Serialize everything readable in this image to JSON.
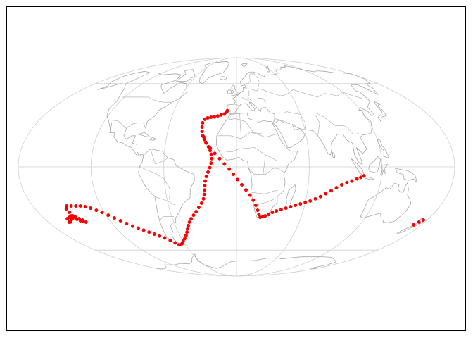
{
  "map": {
    "projection": "mollweide",
    "frame": true,
    "graticule": {
      "meridians_deg": [
        -180,
        -120,
        -60,
        0,
        60,
        120,
        180
      ],
      "parallels_deg": [
        -60,
        -30,
        0,
        30,
        60
      ]
    },
    "colors": {
      "frame": "#000000",
      "graticule": "#cfcfcf",
      "coastline": "#a8a8a8",
      "track": "#ff0000",
      "track_edge": "#cc0000"
    }
  },
  "chart_data": {
    "type": "scatter",
    "title": "",
    "xlabel": "",
    "ylabel": "",
    "series": [
      {
        "points_lonlat": [
          [
            -8.8,
            38.7
          ],
          [
            -9.5,
            37.6
          ],
          [
            -11.5,
            36.3
          ],
          [
            -14.5,
            35.6
          ],
          [
            -17.5,
            34.8
          ],
          [
            -20.5,
            34.2
          ],
          [
            -23.5,
            34.0
          ],
          [
            -26.5,
            33.5
          ],
          [
            -29.0,
            32.5
          ],
          [
            -30.5,
            30.0
          ],
          [
            -30.5,
            27.0
          ],
          [
            -30.0,
            24.0
          ],
          [
            -29.0,
            21.0
          ],
          [
            -27.5,
            18.5
          ],
          [
            -25.5,
            16.0
          ],
          [
            -23.5,
            13.5
          ],
          [
            -22.0,
            11.0
          ],
          [
            -21.0,
            8.5
          ],
          [
            -20.5,
            5.5
          ],
          [
            -21.0,
            2.5
          ],
          [
            -22.0,
            -0.5
          ],
          [
            -23.5,
            -3.5
          ],
          [
            -25.0,
            -6.5
          ],
          [
            -26.0,
            -9.5
          ],
          [
            -26.5,
            -12.5
          ],
          [
            -27.0,
            -15.5
          ],
          [
            -27.5,
            -18.5
          ],
          [
            -28.5,
            -21.5
          ],
          [
            -30.5,
            -24.5
          ],
          [
            -33.5,
            -27.5
          ],
          [
            -36.5,
            -30.5
          ],
          [
            -39.5,
            -33.0
          ],
          [
            -42.5,
            -35.5
          ],
          [
            -45.0,
            -38.0
          ],
          [
            -47.0,
            -40.5
          ],
          [
            -49.0,
            -43.0
          ],
          [
            -51.0,
            -45.5
          ],
          [
            -53.5,
            -48.0
          ],
          [
            -56.5,
            -50.5
          ],
          [
            -60.0,
            -52.5
          ],
          [
            -63.0,
            -54.5
          ],
          [
            -65.5,
            -55.5
          ],
          [
            -67.5,
            -55.5
          ],
          [
            -70.5,
            -54.0
          ],
          [
            -74.0,
            -52.0
          ],
          [
            -78.0,
            -50.0
          ],
          [
            -82.0,
            -48.5
          ],
          [
            -86.0,
            -47.0
          ],
          [
            -90.0,
            -45.5
          ],
          [
            -94.0,
            -44.0
          ],
          [
            -98.0,
            -42.5
          ],
          [
            -102.0,
            -41.0
          ],
          [
            -106.0,
            -39.0
          ],
          [
            -110.0,
            -37.0
          ],
          [
            -114.0,
            -35.0
          ],
          [
            -118.0,
            -33.0
          ],
          [
            -122.0,
            -31.0
          ],
          [
            -126.0,
            -29.5
          ],
          [
            -130.0,
            -28.0
          ],
          [
            -134.0,
            -27.0
          ],
          [
            -138.0,
            -26.5
          ],
          [
            -142.0,
            -26.5
          ],
          [
            -146.0,
            -26.5
          ],
          [
            -150.0,
            -26.5
          ],
          [
            -152.0,
            -28.5
          ],
          [
            -151.5,
            -31.0
          ],
          [
            -152.5,
            -33.5
          ],
          [
            -155.0,
            -36.0
          ],
          [
            -158.0,
            -37.5
          ],
          [
            -158.5,
            -35.5
          ],
          [
            -155.5,
            -34.5
          ],
          [
            -152.5,
            -35.0
          ],
          [
            -150.0,
            -36.0
          ],
          [
            -148.0,
            -37.0
          ],
          [
            -146.0,
            -37.5
          ],
          [
            -144.0,
            -38.0
          ],
          [
            -145.5,
            -36.5
          ],
          [
            -147.5,
            -35.5
          ],
          [
            -149.5,
            -34.5
          ],
          [
            -151.0,
            -33.5
          ],
          [
            -159.0,
            -38.0
          ],
          [
            -160.0,
            -38.0
          ],
          [
            -157.5,
            -37.0
          ],
          [
            -28.0,
            20.0
          ],
          [
            -26.0,
            16.5
          ],
          [
            -22.0,
            12.5
          ],
          [
            -18.0,
            9.0
          ],
          [
            -14.0,
            5.5
          ],
          [
            -10.0,
            2.0
          ],
          [
            -6.0,
            -1.5
          ],
          [
            -2.5,
            -5.0
          ],
          [
            1.0,
            -8.5
          ],
          [
            4.5,
            -12.0
          ],
          [
            8.0,
            -15.5
          ],
          [
            11.5,
            -19.0
          ],
          [
            14.5,
            -22.5
          ],
          [
            17.0,
            -26.0
          ],
          [
            19.0,
            -29.5
          ],
          [
            20.5,
            -32.5
          ],
          [
            22.0,
            -34.5
          ],
          [
            24.5,
            -34.0
          ],
          [
            26.5,
            -33.5
          ],
          [
            29.5,
            -32.5
          ],
          [
            32.5,
            -31.0
          ],
          [
            36.0,
            -30.0
          ],
          [
            40.0,
            -29.0
          ],
          [
            44.0,
            -28.0
          ],
          [
            48.0,
            -27.0
          ],
          [
            52.0,
            -26.0
          ],
          [
            56.0,
            -25.0
          ],
          [
            60.0,
            -24.0
          ],
          [
            64.0,
            -23.0
          ],
          [
            68.0,
            -21.5
          ],
          [
            72.0,
            -20.0
          ],
          [
            76.0,
            -18.0
          ],
          [
            80.0,
            -16.0
          ],
          [
            84.0,
            -14.0
          ],
          [
            88.0,
            -12.0
          ],
          [
            92.0,
            -10.5
          ],
          [
            96.0,
            -9.5
          ],
          [
            100.0,
            -8.0
          ],
          [
            103.0,
            -7.0
          ],
          [
            105.5,
            -6.0
          ],
          [
            172.5,
            -40.0
          ],
          [
            174.5,
            -38.0
          ],
          [
            176.5,
            -36.5
          ]
        ]
      }
    ]
  }
}
